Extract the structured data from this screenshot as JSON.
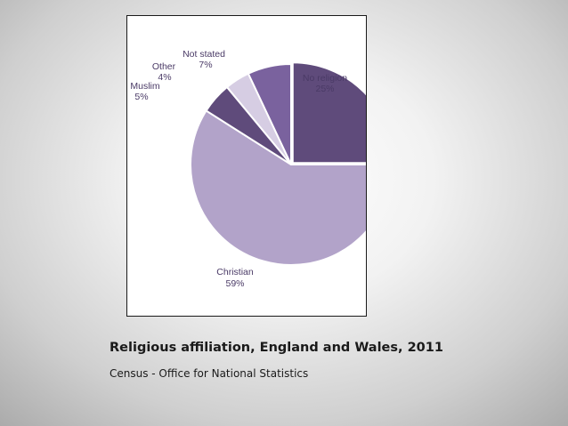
{
  "caption": {
    "title": "Religious affiliation, England and Wales, 2011",
    "source": "Census - Office for National Statistics"
  },
  "chart_data": {
    "type": "pie",
    "title": "",
    "slices": [
      {
        "label": "No religion",
        "value_label": "25%",
        "value": 25,
        "color": "#5f4b7b"
      },
      {
        "label": "Christian",
        "value_label": "59%",
        "value": 59,
        "color": "#b2a3c9"
      },
      {
        "label": "Muslim",
        "value_label": "5%",
        "value": 5,
        "color": "#5f4b7b"
      },
      {
        "label": "Other",
        "value_label": "4%",
        "value": 4,
        "color": "#d6cde3"
      },
      {
        "label": "Not stated",
        "value_label": "7%",
        "value": 7,
        "color": "#7a629e"
      }
    ],
    "label_color": "#4a3a66",
    "legend": "none"
  }
}
